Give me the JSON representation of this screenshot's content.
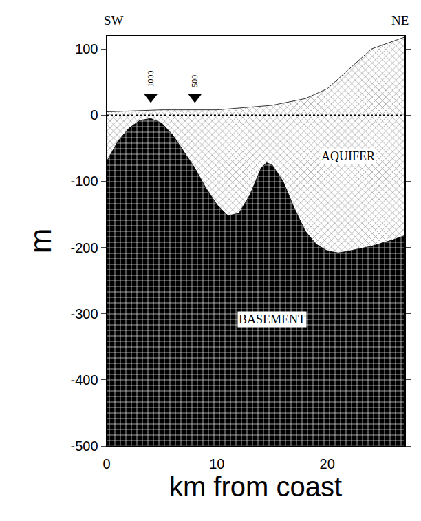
{
  "chart_data": {
    "type": "area",
    "x_label": "km from coast",
    "y_label": "m",
    "direction_labels": [
      "SW",
      "NE"
    ],
    "xlim": [
      0,
      27
    ],
    "ylim": [
      -500,
      120
    ],
    "xticks": [
      0,
      10,
      20
    ],
    "yticks": [
      -500,
      -400,
      -300,
      -200,
      -100,
      0,
      100
    ],
    "sea_level": 0,
    "series": [
      {
        "name": "AQUIFER",
        "color": "#777777",
        "x": [
          0,
          5,
          10,
          15,
          18,
          20,
          22,
          24,
          26,
          27
        ],
        "values": [
          5,
          8,
          8,
          15,
          25,
          40,
          70,
          100,
          112,
          118
        ]
      },
      {
        "name": "BASEMENT",
        "color": "#000000",
        "x": [
          0,
          1,
          2,
          3,
          4,
          5,
          6,
          7,
          8,
          9,
          10,
          11,
          12,
          13,
          14,
          14.5,
          15,
          16,
          17,
          18,
          19,
          20,
          21,
          22,
          24,
          26,
          27
        ],
        "values": [
          -70,
          -40,
          -20,
          -8,
          -5,
          -12,
          -30,
          -55,
          -80,
          -110,
          -135,
          -152,
          -148,
          -120,
          -80,
          -72,
          -75,
          -100,
          -140,
          -175,
          -195,
          -205,
          -208,
          -205,
          -198,
          -188,
          -182
        ]
      }
    ],
    "wells": [
      {
        "x": 4,
        "y": 28,
        "label": "1000"
      },
      {
        "x": 8,
        "y": 28,
        "label": "500"
      }
    ],
    "grid": false
  }
}
